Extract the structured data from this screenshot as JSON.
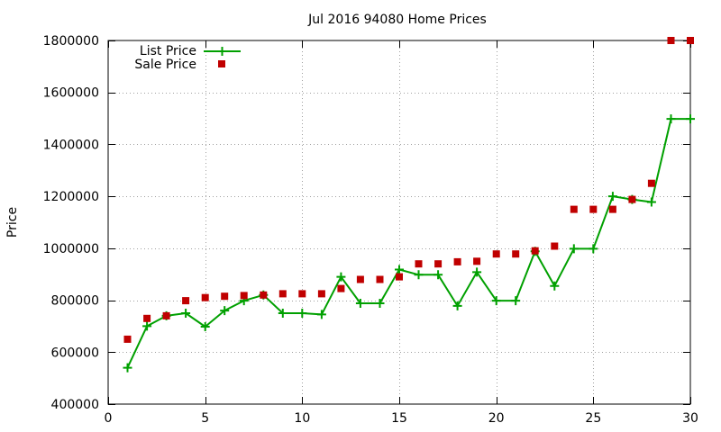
{
  "chart_data": {
    "type": "line",
    "title": "Jul 2016 94080 Home Prices",
    "xlabel": "",
    "ylabel": "Price",
    "xlim": [
      0,
      30
    ],
    "ylim": [
      400000,
      1800000
    ],
    "x_ticks": [
      0,
      5,
      10,
      15,
      20,
      25,
      30
    ],
    "y_ticks": [
      400000,
      600000,
      800000,
      1000000,
      1200000,
      1400000,
      1600000,
      1800000
    ],
    "grid": true,
    "legend_position": "top-left",
    "x": [
      1,
      2,
      3,
      4,
      5,
      6,
      7,
      8,
      9,
      10,
      11,
      12,
      13,
      14,
      15,
      16,
      17,
      18,
      19,
      20,
      21,
      22,
      23,
      24,
      25,
      26,
      27,
      28,
      29,
      30
    ],
    "series": [
      {
        "name": "List Price",
        "style": "line-points",
        "color": "#00a000",
        "values": [
          540000,
          700000,
          740000,
          750000,
          698000,
          760000,
          798000,
          820000,
          750000,
          750000,
          745000,
          890000,
          788000,
          788000,
          918000,
          898000,
          898000,
          778000,
          908000,
          798000,
          798000,
          988000,
          855000,
          998000,
          998000,
          1200000,
          1188000,
          1178000,
          1498000,
          1498000
        ]
      },
      {
        "name": "Sale Price",
        "style": "points",
        "color": "#c00000",
        "values": [
          650000,
          730000,
          740000,
          798000,
          810000,
          815000,
          818000,
          820000,
          825000,
          825000,
          825000,
          845000,
          880000,
          880000,
          890000,
          940000,
          940000,
          948000,
          950000,
          978000,
          978000,
          990000,
          1008000,
          1150000,
          1150000,
          1150000,
          1188000,
          1250000,
          1800000,
          1800000
        ]
      }
    ]
  }
}
